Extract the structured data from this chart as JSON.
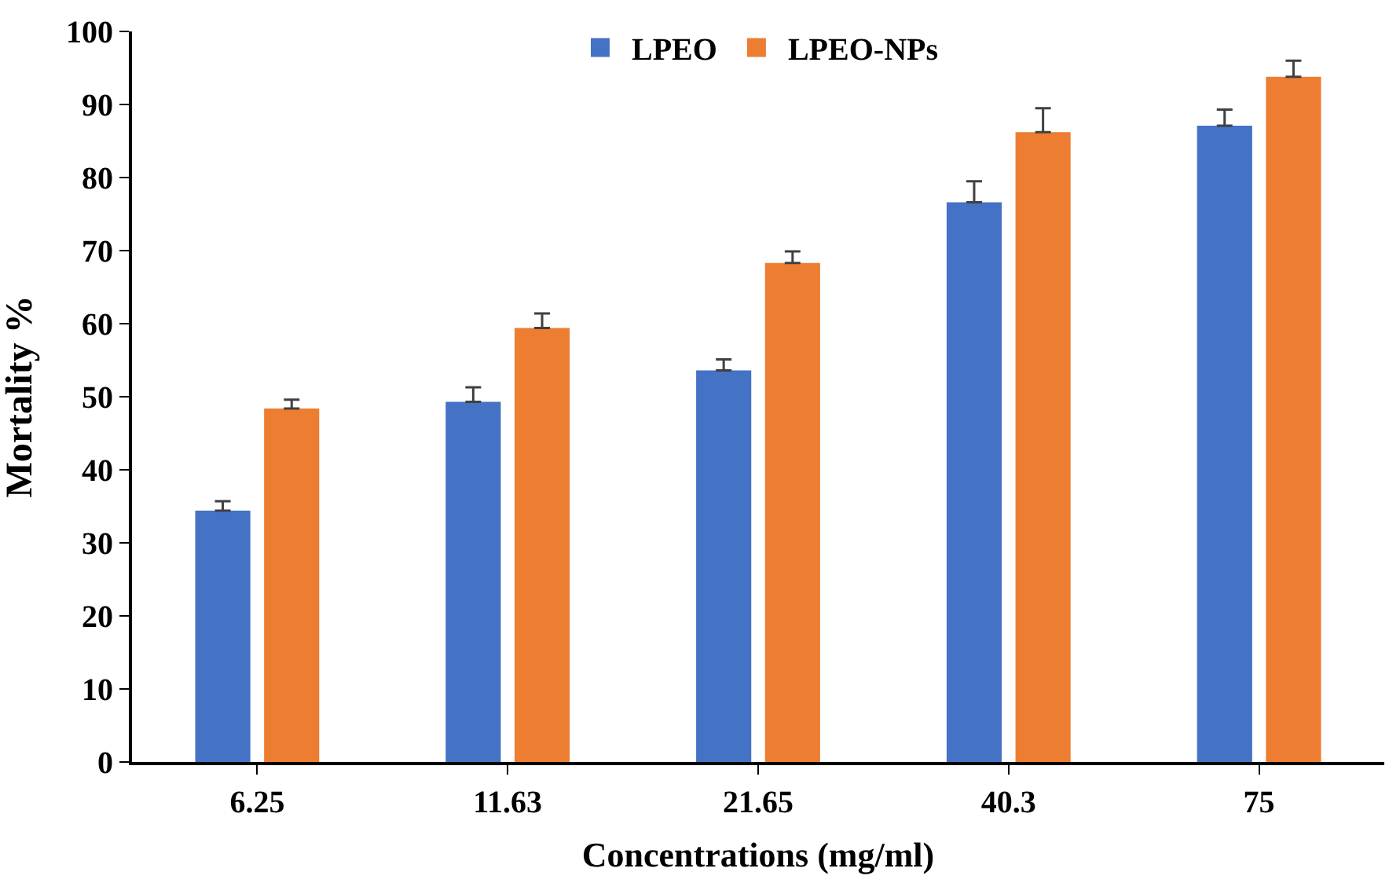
{
  "chart_data": {
    "type": "bar",
    "xlabel": "Concentrations (mg/ml)",
    "ylabel": "Mortality %",
    "categories": [
      "6.25",
      "11.63",
      "21.65",
      "40.3",
      "75"
    ],
    "series": [
      {
        "name": "LPEO",
        "color": "#4472c4",
        "values": [
          34.4,
          49.3,
          53.6,
          76.6,
          87.1
        ],
        "errors": [
          [
            34.4,
            35.7
          ],
          [
            49.3,
            51.3
          ],
          [
            53.6,
            55.1
          ],
          [
            76.6,
            79.5
          ],
          [
            87.1,
            89.3
          ]
        ]
      },
      {
        "name": "LPEO-NPs",
        "color": "#ed7d31",
        "values": [
          48.4,
          59.4,
          68.3,
          86.2,
          93.8
        ],
        "errors": [
          [
            48.4,
            49.6
          ],
          [
            59.4,
            61.4
          ],
          [
            68.3,
            69.9
          ],
          [
            86.2,
            89.5
          ],
          [
            93.8,
            96.0
          ]
        ]
      }
    ],
    "ylim": [
      0,
      100
    ],
    "yticks": [
      0,
      10,
      20,
      30,
      40,
      50,
      60,
      70,
      80,
      90,
      100
    ],
    "legend": "top"
  }
}
